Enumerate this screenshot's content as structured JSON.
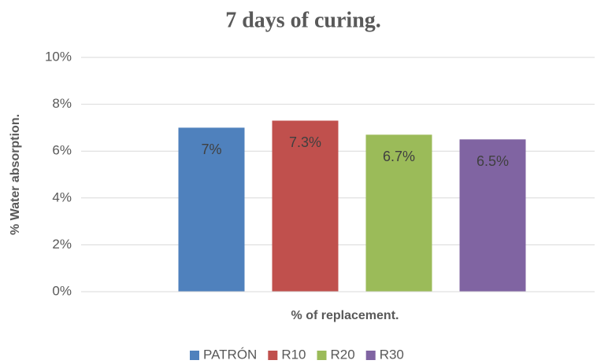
{
  "chart_data": {
    "type": "bar",
    "title": "7 days of curing.",
    "x_label": "% of replacement.",
    "y_label": "% Water absorption.",
    "categories": [
      null
    ],
    "series": [
      {
        "name": "PATRÓN",
        "color": "#4f81bd",
        "values": [
          7
        ],
        "value_labels": [
          "7%"
        ]
      },
      {
        "name": "R10",
        "color": "#c0504d",
        "values": [
          7.3
        ],
        "value_labels": [
          "7.3%"
        ]
      },
      {
        "name": "R20",
        "color": "#9bbb59",
        "values": [
          6.7
        ],
        "value_labels": [
          "6.7%"
        ]
      },
      {
        "name": "R30",
        "color": "#8064a2",
        "values": [
          6.5
        ],
        "value_labels": [
          "6.5%"
        ]
      }
    ],
    "ylim": [
      0,
      10
    ],
    "yticks": [
      {
        "value": 0,
        "label": "0%"
      },
      {
        "value": 2,
        "label": "2%"
      },
      {
        "value": 4,
        "label": "4%"
      },
      {
        "value": 6,
        "label": "6%"
      },
      {
        "value": 8,
        "label": "8%"
      },
      {
        "value": 10,
        "label": "10%"
      }
    ],
    "grid": true,
    "legend": "bottom"
  }
}
